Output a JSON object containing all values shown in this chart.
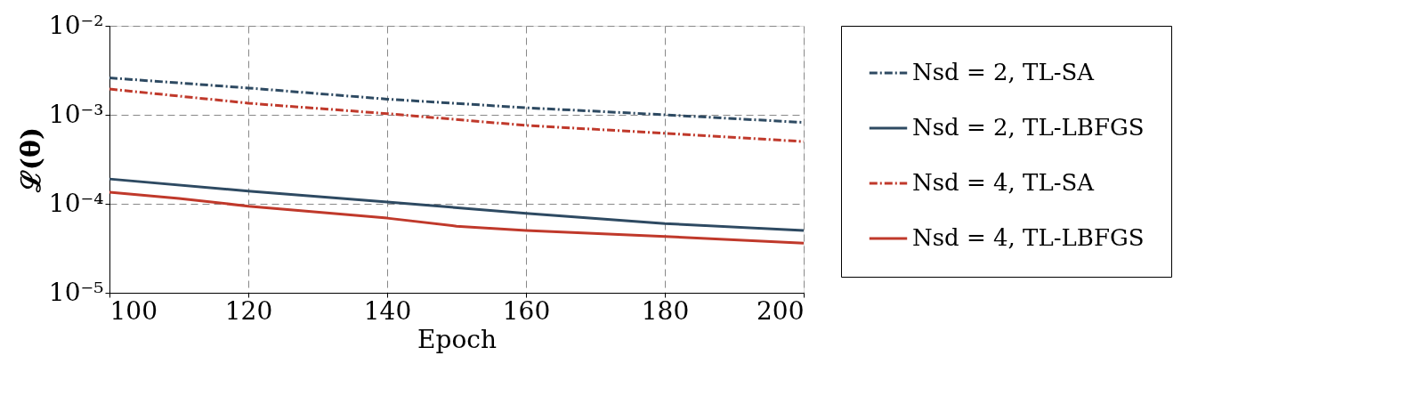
{
  "chart_data": {
    "type": "line",
    "xlabel": "Epoch",
    "ylabel": "ℒ(θ)",
    "log": "y",
    "grid": true,
    "legend": "right",
    "xlim": [
      100,
      200
    ],
    "xticks": [
      100,
      120,
      140,
      160,
      180,
      200
    ],
    "ylim": [
      1e-05,
      0.01
    ],
    "yticks": [
      {
        "value": 1e-05,
        "label": "10⁻⁵"
      },
      {
        "value": 0.0001,
        "label": "10⁻⁴"
      },
      {
        "value": 0.001,
        "label": "10⁻³"
      },
      {
        "value": 0.01,
        "label": "10⁻²"
      }
    ],
    "series": [
      {
        "name": "Nsd = 2, TL-SA",
        "color": "#2e4a62",
        "line_style": "dashdot",
        "x": [
          100,
          120,
          140,
          160,
          180,
          200
        ],
        "values": [
          0.0026,
          0.002,
          0.0015,
          0.0012,
          0.001,
          0.00082
        ]
      },
      {
        "name": "Nsd = 2, TL-LBFGS",
        "color": "#2e4a62",
        "line_style": "solid",
        "x": [
          100,
          120,
          140,
          160,
          180,
          200
        ],
        "values": [
          0.00019,
          0.000139,
          0.000105,
          7.8e-05,
          6e-05,
          5e-05
        ]
      },
      {
        "name": "Nsd = 4, TL-SA",
        "color": "#c0392b",
        "line_style": "dashdot",
        "x": [
          100,
          120,
          140,
          160,
          180,
          200
        ],
        "values": [
          0.00195,
          0.00135,
          0.00103,
          0.00076,
          0.00062,
          0.0005
        ]
      },
      {
        "name": "Nsd = 4, TL-LBFGS",
        "color": "#c0392b",
        "line_style": "solid",
        "x": [
          100,
          110,
          120,
          140,
          150,
          160,
          180,
          200
        ],
        "values": [
          0.000135,
          0.000115,
          9.4e-05,
          6.9e-05,
          5.6e-05,
          5e-05,
          4.3e-05,
          3.6e-05
        ]
      }
    ]
  }
}
